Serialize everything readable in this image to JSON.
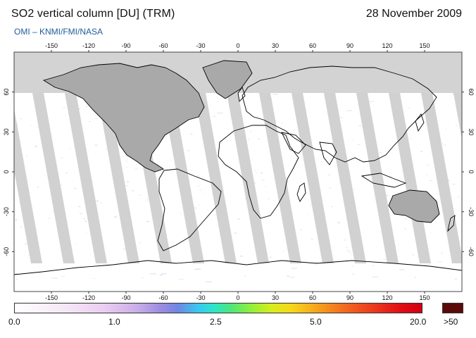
{
  "header": {
    "title": "SO2 vertical column [DU] (TRM)",
    "date": "28 November 2009",
    "credit": "OMI  –  KNMI/FMI/NASA"
  },
  "map": {
    "lon_ticks": [
      "-150",
      "-120",
      "-90",
      "-60",
      "-30",
      "0",
      "30",
      "60",
      "90",
      "120",
      "150"
    ],
    "lat_ticks": [
      "60",
      "30",
      "0",
      "-30",
      "-60"
    ],
    "colors": {
      "no_data": "#d3d3d3",
      "land_no_data": "#a8a8a8",
      "coast": "#000000",
      "background": "#ffffff"
    }
  },
  "colorbar": {
    "labels": [
      "0.0",
      "1.0",
      "2.5",
      "5.0",
      "20.0"
    ],
    "over_label": ">50",
    "over_color": "#5a0a08"
  }
}
